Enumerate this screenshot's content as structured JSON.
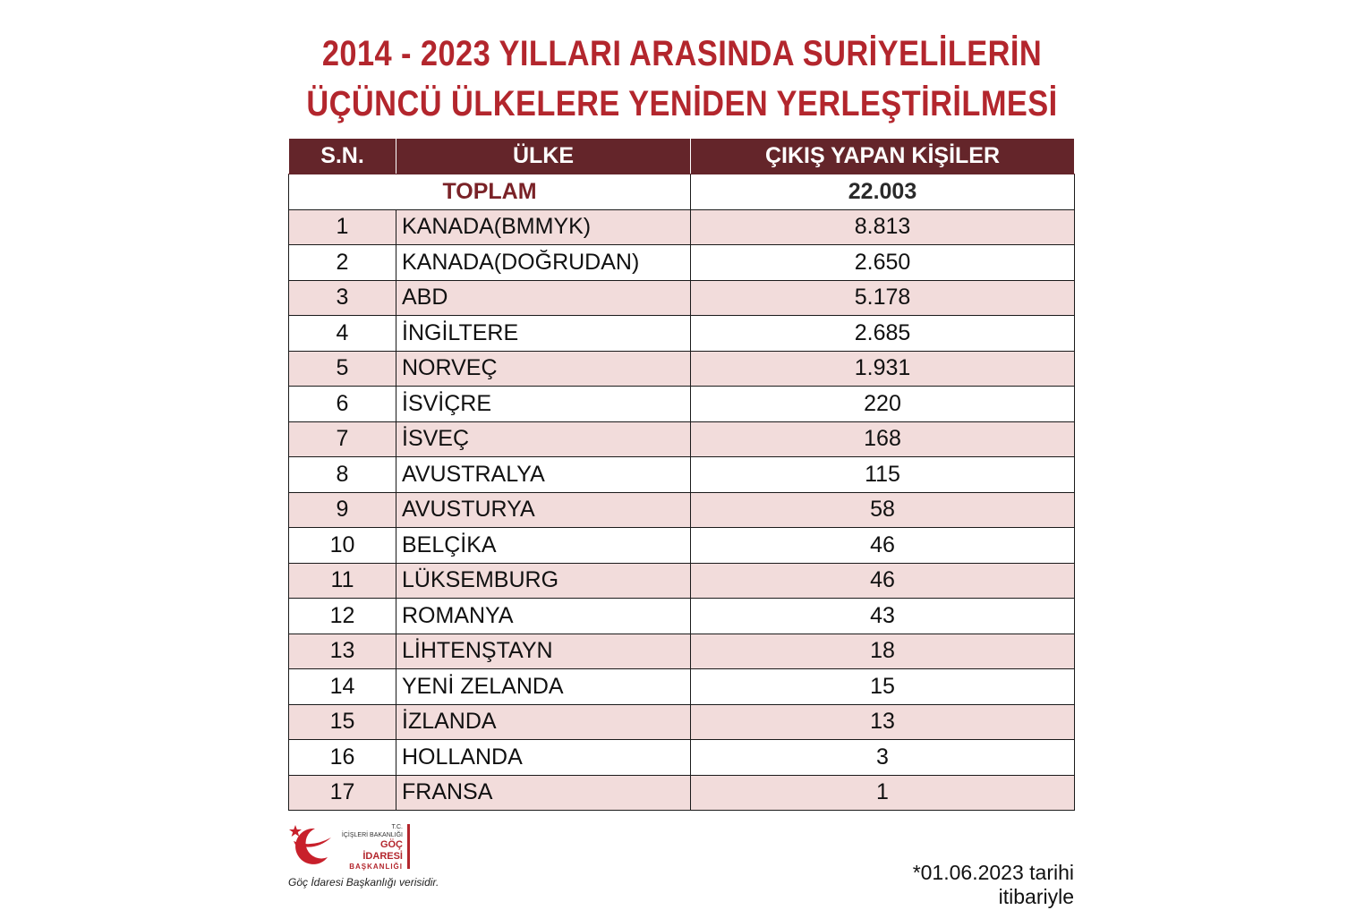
{
  "title": {
    "line1": "2014 - 2023 YILLARI ARASINDA SURİYELİLERİN",
    "line2": "ÜÇÜNCÜ ÜLKELERE YENİDEN YERLEŞTİRİLMESİ"
  },
  "table": {
    "headers": [
      "S.N.",
      "ÜLKE",
      "ÇIKIŞ YAPAN KİŞİLER"
    ],
    "total_label": "TOPLAM",
    "total_value": "22.003",
    "rows": [
      {
        "sn": "1",
        "country": "KANADA(BMMYK)",
        "value": "8.813"
      },
      {
        "sn": "2",
        "country": "KANADA(DOĞRUDAN)",
        "value": "2.650"
      },
      {
        "sn": "3",
        "country": "ABD",
        "value": "5.178"
      },
      {
        "sn": "4",
        "country": "İNGİLTERE",
        "value": "2.685"
      },
      {
        "sn": "5",
        "country": "NORVEÇ",
        "value": "1.931"
      },
      {
        "sn": "6",
        "country": "İSVİÇRE",
        "value": "220"
      },
      {
        "sn": "7",
        "country": "İSVEÇ",
        "value": "168"
      },
      {
        "sn": "8",
        "country": "AVUSTRALYA",
        "value": "115"
      },
      {
        "sn": "9",
        "country": "AVUSTURYA",
        "value": "58"
      },
      {
        "sn": "10",
        "country": "BELÇİKA",
        "value": "46"
      },
      {
        "sn": "11",
        "country": "LÜKSEMBURG",
        "value": "46"
      },
      {
        "sn": "12",
        "country": "ROMANYA",
        "value": "43"
      },
      {
        "sn": "13",
        "country": "LİHTENŞTAYN",
        "value": "18"
      },
      {
        "sn": "14",
        "country": "YENİ ZELANDA",
        "value": "15"
      },
      {
        "sn": "15",
        "country": "İZLANDA",
        "value": "13"
      },
      {
        "sn": "16",
        "country": "HOLLANDA",
        "value": "3"
      },
      {
        "sn": "17",
        "country": "FRANSA",
        "value": "1"
      }
    ]
  },
  "logo": {
    "line1": "T.C.",
    "line2": "İÇİŞLERİ BAKANLIĞI",
    "line3": "GÖÇ İDARESİ",
    "line4": "BAŞKANLIĞI"
  },
  "footer": {
    "source": "Göç İdaresi Başkanlığı verisidir.",
    "note": "*01.06.2023 tarihi itibariyle"
  },
  "colors": {
    "title": "#b3262d",
    "header_bg": "#64252a",
    "stripe": "#f2dcdb"
  }
}
